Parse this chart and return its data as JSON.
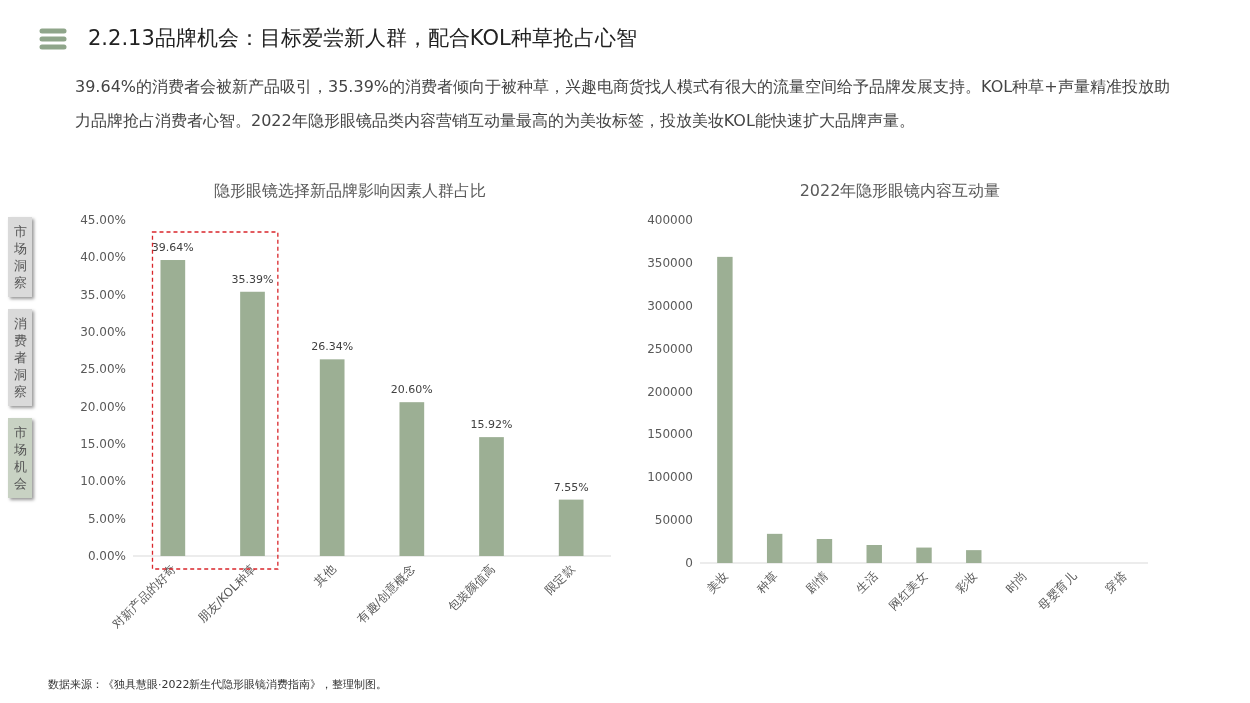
{
  "chart_data": [
    {
      "type": "other",
      "title": "2.2.13品牌机会：目标爱尝新人群，配合KOL种草抢占心智",
      "subtitle": "39.64%的消费者会被新产品吸引，35.39%的消费者倾向于被种草，兴趣电商货找人模式有很大的流量空间给予品牌发展支持。KOL种草+声量精准投放助力品牌抢占消费者心智。2022年隐形眼镜品类内容营销互动量最高的为美妆标签，投放美妆KOL能快速扩大品牌声量。",
      "annotations": [
        "市场洞察",
        "消费者洞察",
        "市场机会",
        "数据来源：《独具慧眼·2022新生代隐形眼镜消费指南》，整理制图。"
      ]
    },
    {
      "type": "bar",
      "title": "隐形眼镜选择新品牌影响因素人群占比",
      "categories": [
        "对新产品的好奇",
        "朋友/KOL种草",
        "其他",
        "有趣/创意概念",
        "包装颜值高",
        "限定款"
      ],
      "values": [
        39.64,
        35.39,
        26.34,
        20.6,
        15.92,
        7.55
      ],
      "value_labels": [
        "39.64%",
        "35.39%",
        "26.34%",
        "20.60%",
        "15.92%",
        "7.55%"
      ],
      "color": "#9caf94",
      "ylim": [
        0,
        45
      ],
      "yticks": [
        {
          "value": 0,
          "label": "0.00%"
        },
        {
          "value": 5,
          "label": "5.00%"
        },
        {
          "value": 10,
          "label": "10.00%"
        },
        {
          "value": 15,
          "label": "15.00%"
        },
        {
          "value": 20,
          "label": "20.00%"
        },
        {
          "value": 25,
          "label": "25.00%"
        },
        {
          "value": 30,
          "label": "30.00%"
        },
        {
          "value": 35,
          "label": "35.00%"
        },
        {
          "value": 40,
          "label": "40.00%"
        },
        {
          "value": 45,
          "label": "45.00%"
        }
      ]
    },
    {
      "type": "bar",
      "title": "2022年隐形眼镜内容互动量",
      "categories": [
        "美妆",
        "种草",
        "剧情",
        "生活",
        "网红美女",
        "彩妆",
        "时尚",
        "母婴育儿",
        "穿搭"
      ],
      "values": [
        357000,
        34000,
        28000,
        21000,
        18000,
        15000,
        0,
        0,
        0
      ],
      "color": "#9caf94",
      "ylim": [
        0,
        400000
      ],
      "yticks": [
        0,
        50000,
        100000,
        150000,
        200000,
        250000,
        300000,
        350000,
        400000
      ]
    }
  ]
}
